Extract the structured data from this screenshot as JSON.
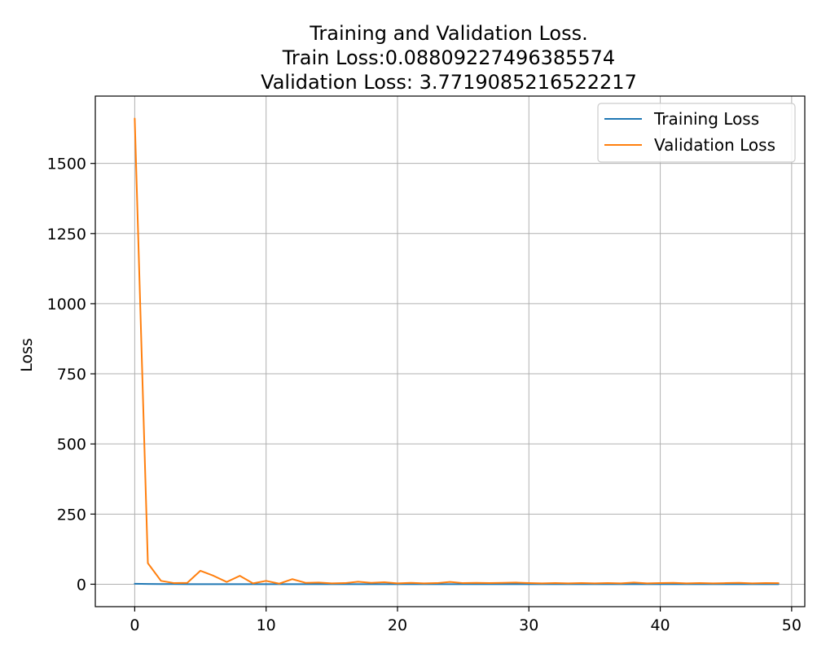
{
  "chart_data": {
    "type": "line",
    "title_lines": [
      "Training and Validation Loss.",
      "Train Loss:0.08809227496385574",
      "Validation Loss: 3.7719085216522217"
    ],
    "xlabel": "",
    "ylabel": "Loss",
    "xlim": [
      -3,
      51
    ],
    "ylim": [
      -80,
      1740
    ],
    "xticks": [
      0,
      10,
      20,
      30,
      40,
      50
    ],
    "yticks": [
      0,
      250,
      500,
      750,
      1000,
      1250,
      1500
    ],
    "grid": true,
    "legend_position": "top-right",
    "x": [
      0,
      1,
      2,
      3,
      4,
      5,
      6,
      7,
      8,
      9,
      10,
      11,
      12,
      13,
      14,
      15,
      16,
      17,
      18,
      19,
      20,
      21,
      22,
      23,
      24,
      25,
      26,
      27,
      28,
      29,
      30,
      31,
      32,
      33,
      34,
      35,
      36,
      37,
      38,
      39,
      40,
      41,
      42,
      43,
      44,
      45,
      46,
      47,
      48,
      49
    ],
    "series": [
      {
        "name": "Training Loss",
        "color": "#1f77b4",
        "values": [
          1.5,
          0.8,
          0.5,
          0.4,
          0.35,
          0.3,
          0.3,
          0.28,
          0.25,
          0.23,
          0.22,
          0.2,
          0.2,
          0.19,
          0.18,
          0.17,
          0.17,
          0.16,
          0.15,
          0.15,
          0.15,
          0.14,
          0.14,
          0.13,
          0.13,
          0.13,
          0.12,
          0.12,
          0.12,
          0.12,
          0.11,
          0.11,
          0.11,
          0.11,
          0.1,
          0.1,
          0.1,
          0.1,
          0.1,
          0.1,
          0.1,
          0.1,
          0.09,
          0.09,
          0.09,
          0.09,
          0.09,
          0.09,
          0.09,
          0.088
        ]
      },
      {
        "name": "Validation Loss",
        "color": "#ff7f0e",
        "values": [
          1660,
          75,
          12,
          4,
          5,
          48,
          30,
          8,
          30,
          3,
          12,
          2,
          18,
          5,
          6,
          3,
          4,
          9,
          5,
          7,
          3,
          5,
          3,
          4,
          8,
          4,
          5,
          4,
          5,
          6,
          4,
          3,
          4,
          3,
          4,
          3,
          4,
          3,
          6,
          3,
          4,
          5,
          3,
          4,
          3,
          4,
          5,
          3,
          4,
          3.77
        ]
      }
    ]
  }
}
